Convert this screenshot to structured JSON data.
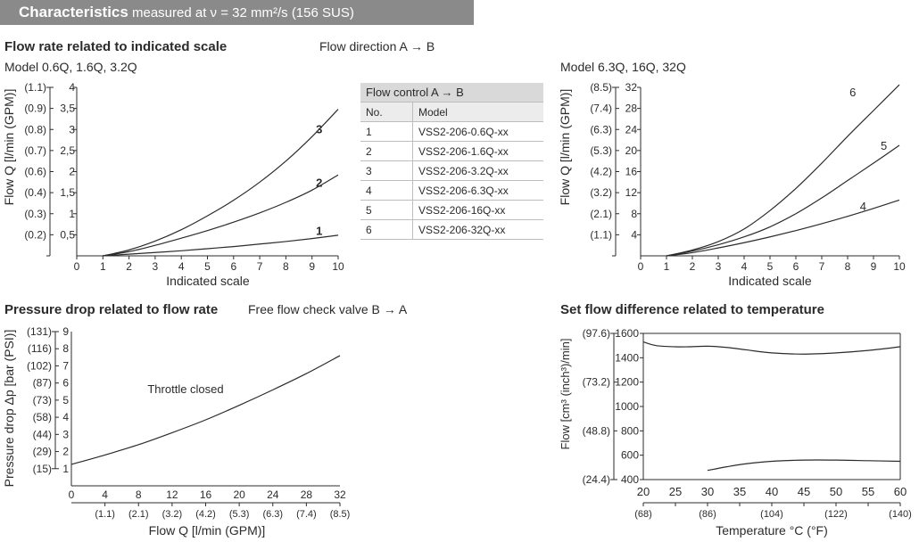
{
  "header": {
    "title": "Characteristics",
    "subtitle": "measured at ν = 32 mm²/s (156 SUS)"
  },
  "flow_section": {
    "title": "Flow rate related to indicated scale",
    "direction": "Flow direction A → B",
    "left_model": "Model 0.6Q, 1.6Q, 3.2Q",
    "right_model": "Model 6.3Q, 16Q, 32Q"
  },
  "table": {
    "title": "Flow control A → B",
    "headers": [
      "No.",
      "Model"
    ],
    "rows": [
      [
        "1",
        "VSS2-206-0.6Q-xx"
      ],
      [
        "2",
        "VSS2-206-1.6Q-xx"
      ],
      [
        "3",
        "VSS2-206-3.2Q-xx"
      ],
      [
        "4",
        "VSS2-206-6.3Q-xx"
      ],
      [
        "5",
        "VSS2-206-16Q-xx"
      ],
      [
        "6",
        "VSS2-206-32Q-xx"
      ]
    ]
  },
  "pressure_section": {
    "title": "Pressure drop related to flow rate",
    "subtitle": "Free flow check valve B → A"
  },
  "temp_section": {
    "title": "Set flow difference related to temperature"
  },
  "colors": {
    "header_bg": "#8a8a8a",
    "header_text": "#ffffff",
    "line": "#2b2b2b"
  },
  "chart_data": [
    {
      "type": "line",
      "name": "flow-small",
      "xlabel": "Indicated scale",
      "ylabel": "Flow Q [l/min (GPM)]",
      "xlim": [
        0,
        10
      ],
      "ylim": [
        0,
        4
      ],
      "x_ticks": [
        "0",
        "1",
        "2",
        "3",
        "4",
        "5",
        "6",
        "7",
        "8",
        "9",
        "10"
      ],
      "y_ticks": [
        {
          "v": 0.5,
          "label": "0,5",
          "alt": "(0.2)"
        },
        {
          "v": 1,
          "label": "1",
          "alt": "(0.3)"
        },
        {
          "v": 1.5,
          "label": "1,5",
          "alt": "(0.4)"
        },
        {
          "v": 2,
          "label": "2",
          "alt": "(0.6)"
        },
        {
          "v": 2.5,
          "label": "2,5",
          "alt": "(0.7)"
        },
        {
          "v": 3,
          "label": "3",
          "alt": "(0.8)"
        },
        {
          "v": 3.5,
          "label": "3,5",
          "alt": "(0.9)"
        },
        {
          "v": 4,
          "label": "4",
          "alt": "(1.1)"
        }
      ],
      "series": [
        {
          "name": "1",
          "x": [
            1,
            2,
            3,
            4,
            5,
            6,
            7,
            8,
            9,
            10
          ],
          "y": [
            0.0,
            0.04,
            0.08,
            0.12,
            0.17,
            0.22,
            0.28,
            0.34,
            0.41,
            0.49
          ]
        },
        {
          "name": "2",
          "x": [
            1,
            2,
            3,
            4,
            5,
            6,
            7,
            8,
            9,
            10
          ],
          "y": [
            0.0,
            0.1,
            0.25,
            0.42,
            0.6,
            0.8,
            1.02,
            1.27,
            1.56,
            1.92
          ]
        },
        {
          "name": "3",
          "x": [
            1,
            2,
            3,
            4,
            5,
            6,
            7,
            8,
            9,
            10
          ],
          "y": [
            0.0,
            0.14,
            0.35,
            0.62,
            0.95,
            1.32,
            1.75,
            2.25,
            2.83,
            3.48
          ]
        }
      ]
    },
    {
      "type": "line",
      "name": "flow-large",
      "xlabel": "Indicated scale",
      "ylabel": "Flow Q [l/min (GPM)]",
      "xlim": [
        0,
        10
      ],
      "ylim": [
        0,
        32
      ],
      "x_ticks": [
        "0",
        "1",
        "2",
        "3",
        "4",
        "5",
        "6",
        "7",
        "8",
        "9",
        "10"
      ],
      "y_ticks": [
        {
          "v": 4,
          "label": "4",
          "alt": "(1.1)"
        },
        {
          "v": 8,
          "label": "8",
          "alt": "(2.1)"
        },
        {
          "v": 12,
          "label": "12",
          "alt": "(3.2)"
        },
        {
          "v": 16,
          "label": "16",
          "alt": "(4.2)"
        },
        {
          "v": 20,
          "label": "20",
          "alt": "(5.3)"
        },
        {
          "v": 24,
          "label": "24",
          "alt": "(6.3)"
        },
        {
          "v": 28,
          "label": "28",
          "alt": "(7.4)"
        },
        {
          "v": 32,
          "label": "32",
          "alt": "(8.5)"
        }
      ],
      "series": [
        {
          "name": "4",
          "x": [
            1,
            2,
            3,
            4,
            5,
            6,
            7,
            8,
            9,
            10
          ],
          "y": [
            0.0,
            0.6,
            1.5,
            2.5,
            3.6,
            4.8,
            6.1,
            7.5,
            9.0,
            10.6
          ]
        },
        {
          "name": "5",
          "x": [
            1,
            2,
            3,
            4,
            5,
            6,
            7,
            8,
            9,
            10
          ],
          "y": [
            0.0,
            0.9,
            2.1,
            3.6,
            5.5,
            8.0,
            11.0,
            14.3,
            17.6,
            21.0
          ]
        },
        {
          "name": "6",
          "x": [
            1,
            2,
            3,
            4,
            5,
            6,
            7,
            8,
            9,
            10
          ],
          "y": [
            0.0,
            1.1,
            2.7,
            5.1,
            8.6,
            12.8,
            17.6,
            22.7,
            27.6,
            32.5
          ]
        }
      ],
      "label_series": [
        {
          "name": "4",
          "x": 8.6,
          "y": 9.3
        },
        {
          "name": "5",
          "x": 9.4,
          "y": 20.8
        },
        {
          "name": "6",
          "x": 8.2,
          "y": 31.0
        }
      ]
    },
    {
      "type": "line",
      "name": "pressure",
      "xlabel": "Flow Q [l/min (GPM)]",
      "ylabel": "Pressure drop Δp [bar (PSI)]",
      "annotation": "Throttle closed",
      "xlim": [
        0,
        32
      ],
      "ylim": [
        0,
        9
      ],
      "x_ticks": [
        {
          "v": 0,
          "label": "0",
          "alt": ""
        },
        {
          "v": 4,
          "label": "4",
          "alt": "(1.1)"
        },
        {
          "v": 8,
          "label": "8",
          "alt": "(2.1)"
        },
        {
          "v": 12,
          "label": "12",
          "alt": "(3.2)"
        },
        {
          "v": 16,
          "label": "16",
          "alt": "(4.2)"
        },
        {
          "v": 20,
          "label": "20",
          "alt": "(5.3)"
        },
        {
          "v": 24,
          "label": "24",
          "alt": "(6.3)"
        },
        {
          "v": 28,
          "label": "28",
          "alt": "(7.4)"
        },
        {
          "v": 32,
          "label": "32",
          "alt": "(8.5)"
        }
      ],
      "y_ticks": [
        {
          "v": 1,
          "label": "1",
          "alt": "(15)"
        },
        {
          "v": 2,
          "label": "2",
          "alt": "(29)"
        },
        {
          "v": 3,
          "label": "3",
          "alt": "(44)"
        },
        {
          "v": 4,
          "label": "4",
          "alt": "(58)"
        },
        {
          "v": 5,
          "label": "5",
          "alt": "(73)"
        },
        {
          "v": 6,
          "label": "6",
          "alt": "(87)"
        },
        {
          "v": 7,
          "label": "7",
          "alt": "(102)"
        },
        {
          "v": 8,
          "label": "8",
          "alt": "(116)"
        },
        {
          "v": 9,
          "label": "9",
          "alt": "(131)"
        }
      ],
      "series": [
        {
          "x": [
            0,
            4,
            8,
            12,
            16,
            20,
            24,
            28,
            32
          ],
          "y": [
            1.25,
            1.8,
            2.4,
            3.1,
            3.85,
            4.7,
            5.6,
            6.55,
            7.6
          ]
        }
      ]
    },
    {
      "type": "line",
      "name": "temperature",
      "xlabel": "Temperature °C (°F)",
      "ylabel": "Flow [cm³ (inch³)/min]",
      "xlim": [
        20,
        60
      ],
      "ylim": [
        400,
        1600
      ],
      "x_ticks": [
        {
          "v": 20,
          "label": "20",
          "alt": "(68)"
        },
        {
          "v": 25,
          "label": "25",
          "alt": ""
        },
        {
          "v": 30,
          "label": "30",
          "alt": "(86)"
        },
        {
          "v": 35,
          "label": "35",
          "alt": ""
        },
        {
          "v": 40,
          "label": "40",
          "alt": "(104)"
        },
        {
          "v": 45,
          "label": "45",
          "alt": ""
        },
        {
          "v": 50,
          "label": "50",
          "alt": "(122)"
        },
        {
          "v": 55,
          "label": "55",
          "alt": ""
        },
        {
          "v": 60,
          "label": "60",
          "alt": "(140)"
        }
      ],
      "y_ticks": [
        {
          "v": 400,
          "label": "400",
          "alt": "(24.4)"
        },
        {
          "v": 600,
          "label": "600",
          "alt": ""
        },
        {
          "v": 800,
          "label": "800",
          "alt": "(48.8)"
        },
        {
          "v": 1000,
          "label": "1000",
          "alt": ""
        },
        {
          "v": 1200,
          "label": "1200",
          "alt": "(73.2)"
        },
        {
          "v": 1400,
          "label": "1400",
          "alt": ""
        },
        {
          "v": 1600,
          "label": "1600",
          "alt": "(97.6)"
        }
      ],
      "series": [
        {
          "x": [
            20,
            22,
            25,
            27,
            30,
            33,
            36,
            40,
            45,
            50,
            55,
            60
          ],
          "y": [
            1530,
            1500,
            1490,
            1490,
            1495,
            1485,
            1465,
            1440,
            1430,
            1440,
            1460,
            1490
          ]
        },
        {
          "x": [
            30,
            33,
            36,
            40,
            45,
            50,
            55,
            60
          ],
          "y": [
            475,
            505,
            530,
            550,
            560,
            560,
            555,
            550
          ]
        }
      ]
    }
  ]
}
